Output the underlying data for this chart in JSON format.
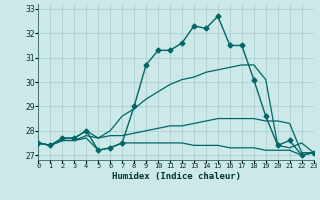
{
  "xlabel": "Humidex (Indice chaleur)",
  "bg_color": "#cce8e8",
  "grid_color": "#aacccc",
  "line_color": "#006666",
  "xlim": [
    0,
    23
  ],
  "ylim": [
    26.8,
    33.2
  ],
  "yticks": [
    27,
    28,
    29,
    30,
    31,
    32,
    33
  ],
  "xtick_labels": [
    "0",
    "1",
    "2",
    "3",
    "4",
    "5",
    "6",
    "7",
    "8",
    "9",
    "10",
    "11",
    "12",
    "13",
    "14",
    "15",
    "16",
    "17",
    "18",
    "19",
    "20",
    "21",
    "22",
    "23"
  ],
  "series": [
    {
      "x": [
        0,
        1,
        2,
        3,
        4,
        5,
        6,
        7,
        8,
        9,
        10,
        11,
        12,
        13,
        14,
        15,
        16,
        17,
        18,
        19,
        20,
        21,
        22,
        23
      ],
      "y": [
        27.5,
        27.4,
        27.7,
        27.7,
        28.0,
        27.2,
        27.3,
        27.5,
        29.0,
        30.7,
        31.3,
        31.3,
        31.6,
        32.3,
        32.2,
        32.7,
        31.5,
        31.5,
        30.1,
        28.6,
        27.4,
        27.6,
        27.0,
        27.1
      ],
      "marker": "D",
      "markersize": 2.5,
      "linewidth": 1.0
    },
    {
      "x": [
        0,
        1,
        2,
        3,
        4,
        5,
        6,
        7,
        8,
        9,
        10,
        11,
        12,
        13,
        14,
        15,
        16,
        17,
        18,
        19,
        20,
        21,
        22,
        23
      ],
      "y": [
        27.5,
        27.4,
        27.7,
        27.7,
        28.0,
        27.7,
        28.0,
        28.6,
        28.9,
        29.3,
        29.6,
        29.9,
        30.1,
        30.2,
        30.4,
        30.5,
        30.6,
        30.7,
        30.7,
        30.1,
        27.4,
        27.3,
        27.5,
        27.1
      ],
      "marker": null,
      "linewidth": 0.9
    },
    {
      "x": [
        0,
        1,
        2,
        3,
        4,
        5,
        6,
        7,
        8,
        9,
        10,
        11,
        12,
        13,
        14,
        15,
        16,
        17,
        18,
        19,
        20,
        21,
        22,
        23
      ],
      "y": [
        27.5,
        27.4,
        27.6,
        27.6,
        27.8,
        27.7,
        27.8,
        27.8,
        27.9,
        28.0,
        28.1,
        28.2,
        28.2,
        28.3,
        28.4,
        28.5,
        28.5,
        28.5,
        28.5,
        28.4,
        28.4,
        28.3,
        27.1,
        27.1
      ],
      "marker": null,
      "linewidth": 0.9
    },
    {
      "x": [
        0,
        1,
        2,
        3,
        4,
        5,
        6,
        7,
        8,
        9,
        10,
        11,
        12,
        13,
        14,
        15,
        16,
        17,
        18,
        19,
        20,
        21,
        22,
        23
      ],
      "y": [
        27.5,
        27.4,
        27.6,
        27.6,
        27.7,
        27.2,
        27.3,
        27.5,
        27.5,
        27.5,
        27.5,
        27.5,
        27.5,
        27.4,
        27.4,
        27.4,
        27.3,
        27.3,
        27.3,
        27.2,
        27.2,
        27.2,
        27.0,
        27.1
      ],
      "marker": null,
      "linewidth": 0.9
    }
  ]
}
